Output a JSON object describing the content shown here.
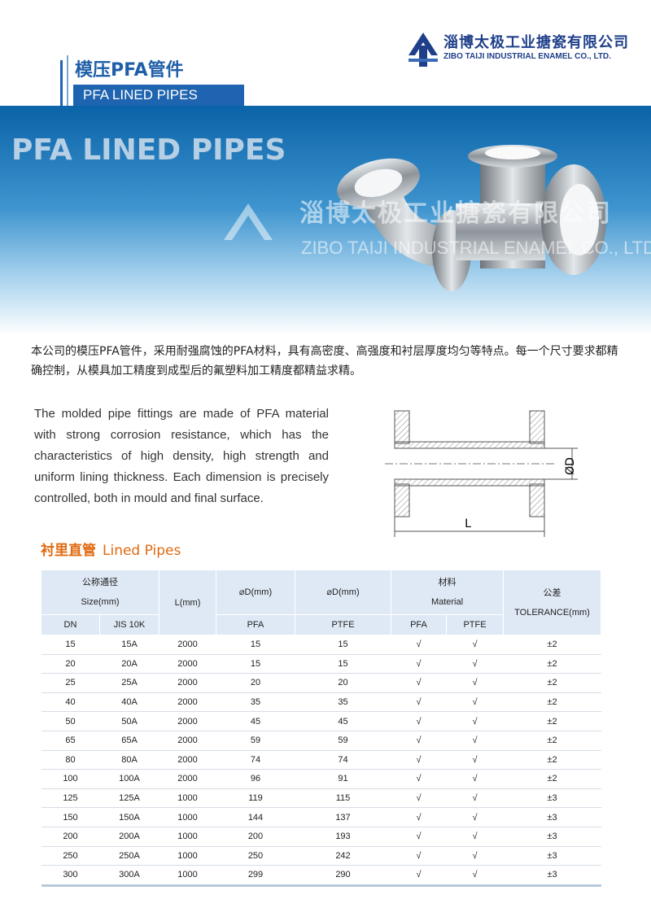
{
  "header": {
    "title_cn": "模压PFA管件",
    "title_en": "PFA LINED PIPES",
    "company_cn": "淄博太极工业搪瓷有限公司",
    "company_en": "ZIBO TAIJI INDUSTRIAL ENAMEL CO., LTD."
  },
  "banner": {
    "title": "PFA LINED PIPES",
    "watermark_cn": "淄博太极工业搪瓷有限公司",
    "watermark_en": "ZIBO TAIJI INDUSTRIAL ENAMEL CO., LTD"
  },
  "intro_cn": "本公司的模压PFA管件，采用耐强腐蚀的PFA材料，具有高密度、高强度和衬层厚度均匀等特点。每一个尺寸要求都精确控制，从模具加工精度到成型后的氟塑料加工精度都精益求精。",
  "intro_en": "The molded pipe fittings are made of PFA material with strong corrosion resistance, which has the characteristics of high density, high strength and uniform lining thickness. Each dimension is precisely controlled, both in mould and final surface.",
  "diagram": {
    "diameter_label": "ØD",
    "length_label": "L"
  },
  "section": {
    "title_cn": "衬里直管",
    "title_en": "Lined Pipes"
  },
  "table": {
    "header": {
      "size_cn": "公称通径",
      "size_en": "Size(mm)",
      "length": "L(mm)",
      "d_pfa": "⌀D(mm)",
      "d_ptfe": "⌀D(mm)",
      "material_cn": "材料",
      "material_en": "Material",
      "tolerance_cn": "公差",
      "tolerance_en": "TOLERANCE(mm)"
    },
    "subheader": [
      "DN",
      "JIS 10K",
      "PFA",
      "PTFE",
      "PFA",
      "PTFE"
    ],
    "rows": [
      [
        15,
        "15A",
        2000,
        15,
        15,
        "√",
        "√",
        "±2"
      ],
      [
        20,
        "20A",
        2000,
        15,
        15,
        "√",
        "√",
        "±2"
      ],
      [
        25,
        "25A",
        2000,
        20,
        20,
        "√",
        "√",
        "±2"
      ],
      [
        40,
        "40A",
        2000,
        35,
        35,
        "√",
        "√",
        "±2"
      ],
      [
        50,
        "50A",
        2000,
        45,
        45,
        "√",
        "√",
        "±2"
      ],
      [
        65,
        "65A",
        2000,
        59,
        59,
        "√",
        "√",
        "±2"
      ],
      [
        80,
        "80A",
        2000,
        74,
        74,
        "√",
        "√",
        "±2"
      ],
      [
        100,
        "100A",
        2000,
        96,
        91,
        "√",
        "√",
        "±2"
      ],
      [
        125,
        "125A",
        1000,
        119,
        115,
        "√",
        "√",
        "±3"
      ],
      [
        150,
        "150A",
        1000,
        144,
        137,
        "√",
        "√",
        "±3"
      ],
      [
        200,
        "200A",
        1000,
        200,
        193,
        "√",
        "√",
        "±3"
      ],
      [
        250,
        "250A",
        1000,
        250,
        242,
        "√",
        "√",
        "±3"
      ],
      [
        300,
        "300A",
        1000,
        299,
        290,
        "√",
        "√",
        "±3"
      ]
    ]
  }
}
